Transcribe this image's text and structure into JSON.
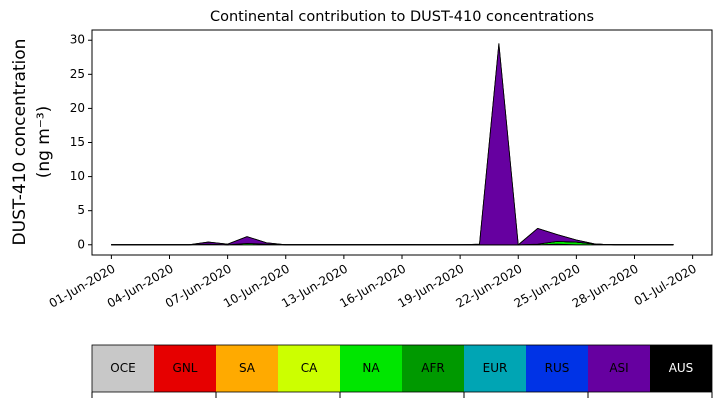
{
  "chart_data": {
    "type": "stacked_area",
    "title": "Continental contribution to DUST-410 concentrations",
    "ylabel": [
      "DUST-410 concentration",
      "(ng m⁻³)"
    ],
    "x": [
      "01-Jun-2020",
      "02-Jun-2020",
      "03-Jun-2020",
      "04-Jun-2020",
      "05-Jun-2020",
      "06-Jun-2020",
      "07-Jun-2020",
      "08-Jun-2020",
      "09-Jun-2020",
      "10-Jun-2020",
      "11-Jun-2020",
      "12-Jun-2020",
      "13-Jun-2020",
      "14-Jun-2020",
      "15-Jun-2020",
      "16-Jun-2020",
      "17-Jun-2020",
      "18-Jun-2020",
      "19-Jun-2020",
      "20-Jun-2020",
      "21-Jun-2020",
      "22-Jun-2020",
      "23-Jun-2020",
      "24-Jun-2020",
      "25-Jun-2020",
      "26-Jun-2020",
      "27-Jun-2020",
      "28-Jun-2020",
      "29-Jun-2020",
      "30-Jun-2020"
    ],
    "xlim": [
      "31-May-2020",
      "02-Jul-2020"
    ],
    "xticks": [
      "01-Jun-2020",
      "04-Jun-2020",
      "07-Jun-2020",
      "10-Jun-2020",
      "13-Jun-2020",
      "16-Jun-2020",
      "19-Jun-2020",
      "22-Jun-2020",
      "25-Jun-2020",
      "28-Jun-2020",
      "01-Jul-2020"
    ],
    "ylim": [
      -1.5,
      31.5
    ],
    "yticks": [
      0,
      5,
      10,
      15,
      20,
      25,
      30
    ],
    "series": [
      {
        "name": "OCE",
        "color": "#c8c8c8",
        "values": [
          0,
          0,
          0,
          0,
          0,
          0,
          0,
          0,
          0,
          0,
          0,
          0,
          0,
          0,
          0,
          0,
          0,
          0,
          0,
          0,
          0,
          0,
          0,
          0,
          0,
          0,
          0,
          0,
          0,
          0
        ]
      },
      {
        "name": "GNL",
        "color": "#e60000",
        "values": [
          0,
          0,
          0,
          0,
          0,
          0,
          0,
          0,
          0,
          0,
          0,
          0,
          0,
          0,
          0,
          0,
          0,
          0,
          0,
          0,
          0,
          0,
          0,
          0,
          0,
          0,
          0,
          0,
          0,
          0
        ]
      },
      {
        "name": "SA",
        "color": "#ffaa00",
        "values": [
          0,
          0,
          0,
          0,
          0,
          0,
          0,
          0,
          0,
          0,
          0,
          0,
          0,
          0,
          0,
          0,
          0,
          0,
          0,
          0,
          0,
          0,
          0,
          0,
          0,
          0,
          0,
          0,
          0,
          0
        ]
      },
      {
        "name": "CA",
        "color": "#ccff00",
        "values": [
          0,
          0,
          0,
          0,
          0,
          0.1,
          0,
          0,
          0,
          0,
          0,
          0,
          0,
          0,
          0,
          0,
          0,
          0,
          0,
          0,
          0,
          0,
          0,
          0.1,
          0,
          0,
          0,
          0,
          0,
          0
        ]
      },
      {
        "name": "NA",
        "color": "#00e600",
        "values": [
          0,
          0,
          0,
          0,
          0,
          0,
          0,
          0.2,
          0.1,
          0,
          0,
          0,
          0,
          0,
          0,
          0,
          0,
          0,
          0,
          0,
          0,
          0,
          0.1,
          0.4,
          0.4,
          0.1,
          0,
          0,
          0,
          0
        ]
      },
      {
        "name": "AFR",
        "color": "#009900",
        "values": [
          0,
          0,
          0,
          0,
          0,
          0,
          0,
          0,
          0,
          0,
          0,
          0,
          0,
          0,
          0,
          0,
          0,
          0,
          0,
          0,
          0,
          0,
          0,
          0,
          0,
          0,
          0,
          0,
          0,
          0
        ]
      },
      {
        "name": "EUR",
        "color": "#00a5b4",
        "values": [
          0,
          0,
          0,
          0,
          0,
          0,
          0,
          0,
          0,
          0,
          0,
          0,
          0,
          0,
          0,
          0,
          0,
          0,
          0,
          0,
          0,
          0,
          0,
          0,
          0,
          0,
          0,
          0,
          0,
          0
        ]
      },
      {
        "name": "RUS",
        "color": "#0033e6",
        "values": [
          0,
          0,
          0,
          0,
          0,
          0,
          0,
          0,
          0,
          0,
          0,
          0,
          0,
          0,
          0,
          0,
          0,
          0,
          0,
          0,
          0,
          0,
          0,
          0,
          0,
          0,
          0,
          0,
          0,
          0
        ]
      },
      {
        "name": "ASI",
        "color": "#6600a0",
        "values": [
          0,
          0,
          0,
          0,
          0,
          0.3,
          0.1,
          1.0,
          0.2,
          0,
          0,
          0,
          0,
          0,
          0,
          0.05,
          0,
          0,
          0,
          0.1,
          29.5,
          0,
          2.3,
          1.0,
          0.3,
          0,
          0,
          0,
          0,
          0
        ]
      },
      {
        "name": "AUS",
        "color": "#000000",
        "values": [
          0,
          0,
          0,
          0,
          0,
          0,
          0,
          0,
          0,
          0,
          0,
          0,
          0,
          0,
          0,
          0,
          0,
          0,
          0,
          0,
          0,
          0,
          0,
          0,
          0,
          0,
          0,
          0,
          0,
          0
        ]
      }
    ]
  }
}
